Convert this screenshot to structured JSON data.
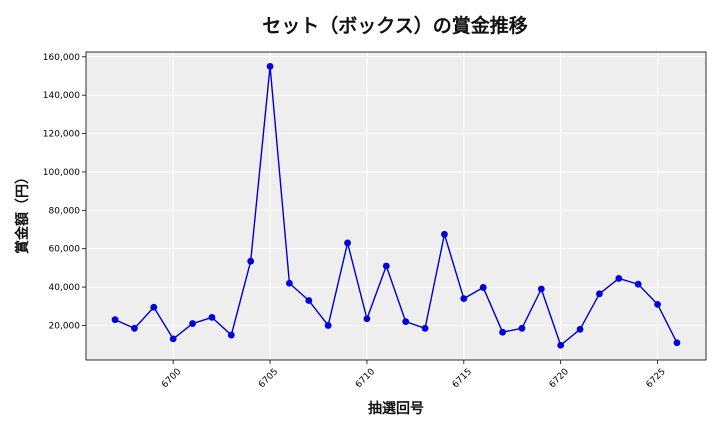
{
  "chart_data": {
    "type": "line",
    "title": "セット（ボックス）の賞金推移",
    "xlabel": "抽選回号",
    "ylabel": "賞金額（円）",
    "x": [
      6697,
      6698,
      6699,
      6700,
      6701,
      6702,
      6703,
      6704,
      6705,
      6706,
      6707,
      6708,
      6709,
      6710,
      6711,
      6712,
      6713,
      6714,
      6715,
      6716,
      6717,
      6718,
      6719,
      6720,
      6721,
      6722,
      6723,
      6724,
      6725,
      6726
    ],
    "values": [
      23000,
      18500,
      29500,
      13000,
      21000,
      24200,
      15000,
      53500,
      155000,
      42000,
      33000,
      20000,
      63000,
      23500,
      51000,
      22000,
      18500,
      67500,
      34000,
      39800,
      16500,
      18500,
      39000,
      9700,
      18000,
      36500,
      44500,
      41500,
      31000,
      11000
    ],
    "xlim": [
      6695.5,
      6727.5
    ],
    "ylim": [
      2000,
      162500
    ],
    "xticks": [
      6700,
      6705,
      6710,
      6715,
      6720,
      6725
    ],
    "xtick_labels": [
      "6700",
      "6705",
      "6710",
      "6715",
      "6720",
      "6725"
    ],
    "yticks": [
      20000,
      40000,
      60000,
      80000,
      100000,
      120000,
      140000,
      160000
    ],
    "ytick_labels": [
      "20,000",
      "40,000",
      "60,000",
      "80,000",
      "100,000",
      "120,000",
      "140,000",
      "160,000"
    ],
    "grid": true,
    "colors": {
      "line": "#0000cc",
      "marker": "#0000dd",
      "plot_bg": "#eeeeee",
      "grid": "#ffffff"
    }
  }
}
